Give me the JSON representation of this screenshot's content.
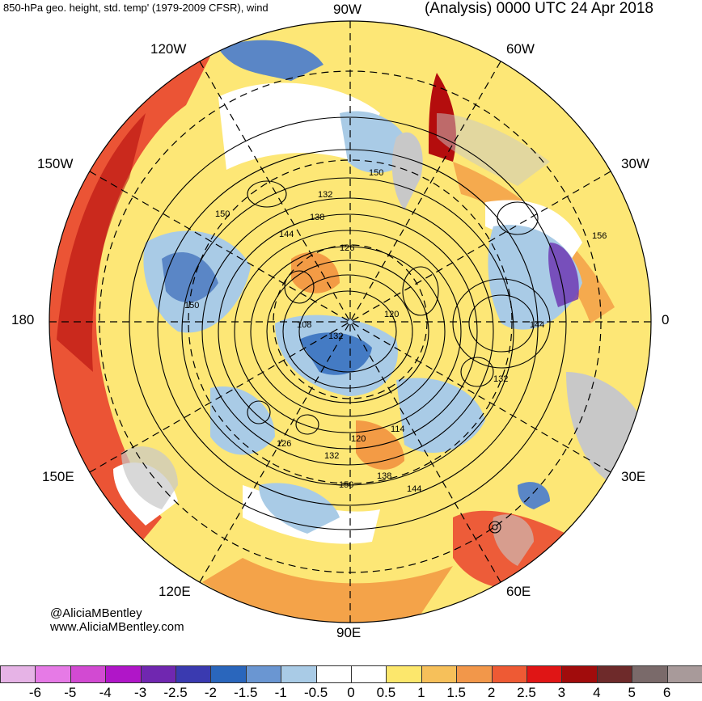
{
  "header": {
    "title_left": "850-hPa geo. height, std. temp' (1979-2009 CFSR), wind",
    "title_right": "(Analysis) 0000 UTC 24 Apr 2018"
  },
  "map": {
    "projection": "south-polar stereographic",
    "longitude_labels": {
      "top": "90W",
      "upper_left": "120W",
      "upper_right": "60W",
      "left_upper": "150W",
      "right_upper": "30W",
      "left": "180",
      "right": "0",
      "left_lower": "150E",
      "right_lower": "30E",
      "lower_left": "120E",
      "lower_right": "60E",
      "bottom": "90E"
    },
    "contour_labels": [
      "150",
      "132",
      "138",
      "144",
      "126",
      "150",
      "156",
      "120",
      "108",
      "132",
      "144",
      "132",
      "114",
      "120",
      "126",
      "132",
      "138",
      "144",
      "150"
    ],
    "colors": {
      "warm_strong": "#b40d0d",
      "warm": "#e8392a",
      "orange": "#f39b45",
      "yellow": "#fde776",
      "light_blue": "#a9cbe6",
      "blue": "#5a86c6",
      "purple": "#6a2fb0",
      "land_gray": "#c8c8c8"
    }
  },
  "credit": {
    "line1": "@AliciaMBentley",
    "line2": "www.AliciaMBentley.com"
  },
  "colorbar": {
    "colors": [
      "#e6b3e6",
      "#e67ae6",
      "#d24ad2",
      "#b016c8",
      "#7027b0",
      "#3a3ab0",
      "#2a66bc",
      "#6a96d2",
      "#a9cbe6",
      "#ffffff",
      "#ffffff",
      "#fce76c",
      "#f6c05a",
      "#f2974a",
      "#ee5a34",
      "#e01515",
      "#a10c0c",
      "#6e2a2a",
      "#7a6a6a",
      "#a89a9a"
    ],
    "ticks": [
      "-6",
      "-5",
      "-4",
      "-3",
      "-2.5",
      "-2",
      "-1.5",
      "-1",
      "-0.5",
      "0",
      "0.5",
      "1",
      "1.5",
      "2",
      "2.5",
      "3",
      "4",
      "5",
      "6"
    ]
  }
}
